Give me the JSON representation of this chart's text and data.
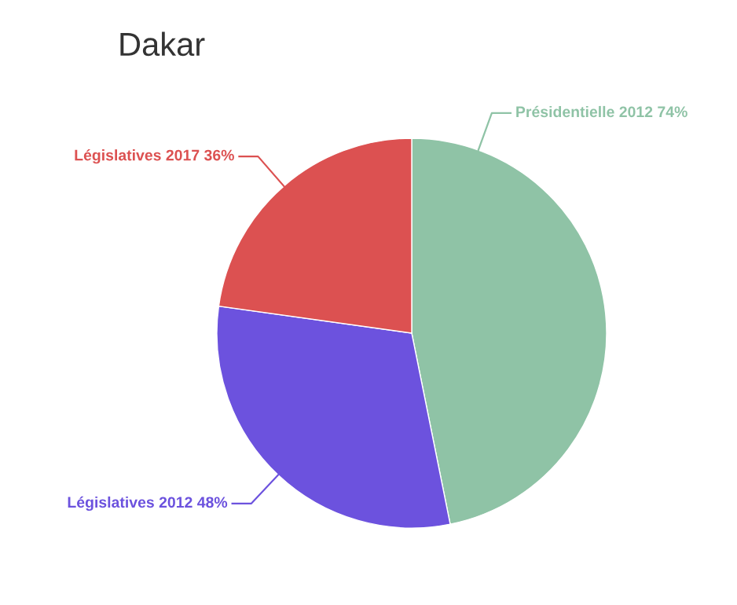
{
  "chart_data": {
    "type": "pie",
    "title": "Dakar",
    "categories": [
      "Présidentielle 2012",
      "Législatives 2012",
      "Législatives 2017"
    ],
    "values": [
      74,
      48,
      36
    ],
    "value_labels": [
      "74%",
      "48%",
      "36%"
    ],
    "colors": [
      "#8fc3a6",
      "#6c52de",
      "#dc5151"
    ],
    "legend": false
  }
}
